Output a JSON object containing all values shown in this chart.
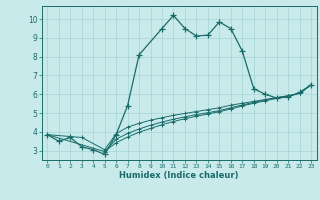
{
  "xlabel": "Humidex (Indice chaleur)",
  "bg_color": "#c8eaea",
  "grid_color": "#a8d4d4",
  "line_color": "#1a6b6b",
  "xlim": [
    -0.5,
    23.5
  ],
  "ylim": [
    2.5,
    10.7
  ],
  "xticks": [
    0,
    1,
    2,
    3,
    4,
    5,
    6,
    7,
    8,
    9,
    10,
    11,
    12,
    13,
    14,
    15,
    16,
    17,
    18,
    19,
    20,
    21,
    22,
    23
  ],
  "yticks": [
    3,
    4,
    5,
    6,
    7,
    8,
    9,
    10
  ],
  "line1_x": [
    0,
    1,
    2,
    3,
    4,
    5,
    6,
    7,
    8,
    10,
    11,
    12,
    13,
    14,
    15,
    16,
    17,
    18,
    19,
    20,
    21,
    22,
    23
  ],
  "line1_y": [
    3.85,
    3.5,
    3.7,
    3.2,
    3.05,
    2.8,
    3.85,
    5.4,
    8.1,
    9.5,
    10.2,
    9.5,
    9.1,
    9.15,
    9.85,
    9.5,
    8.3,
    6.3,
    6.0,
    5.8,
    5.85,
    6.1,
    6.5
  ],
  "line2_x": [
    0,
    3,
    5,
    6,
    7,
    8,
    9,
    10,
    11,
    12,
    13,
    14,
    15,
    16,
    17,
    18,
    19,
    20,
    21,
    22,
    23
  ],
  "line2_y": [
    3.85,
    3.7,
    3.05,
    3.9,
    4.25,
    4.45,
    4.62,
    4.75,
    4.88,
    4.98,
    5.08,
    5.18,
    5.28,
    5.42,
    5.52,
    5.62,
    5.72,
    5.82,
    5.92,
    6.05,
    6.5
  ],
  "line3_x": [
    0,
    5,
    6,
    7,
    8,
    9,
    10,
    11,
    12,
    13,
    14,
    15,
    16,
    17,
    18,
    19,
    20,
    21,
    22,
    23
  ],
  "line3_y": [
    3.85,
    2.95,
    3.6,
    3.92,
    4.15,
    4.35,
    4.52,
    4.67,
    4.8,
    4.92,
    5.02,
    5.13,
    5.28,
    5.43,
    5.57,
    5.7,
    5.82,
    5.92,
    6.05,
    6.5
  ],
  "line4_x": [
    5,
    6,
    7,
    8,
    9,
    10,
    11,
    12,
    13,
    14,
    15,
    16,
    17,
    18,
    19,
    20,
    21,
    22,
    23
  ],
  "line4_y": [
    2.95,
    3.42,
    3.72,
    3.98,
    4.18,
    4.38,
    4.55,
    4.7,
    4.83,
    4.95,
    5.07,
    5.22,
    5.38,
    5.52,
    5.65,
    5.78,
    5.9,
    6.05,
    6.5
  ]
}
